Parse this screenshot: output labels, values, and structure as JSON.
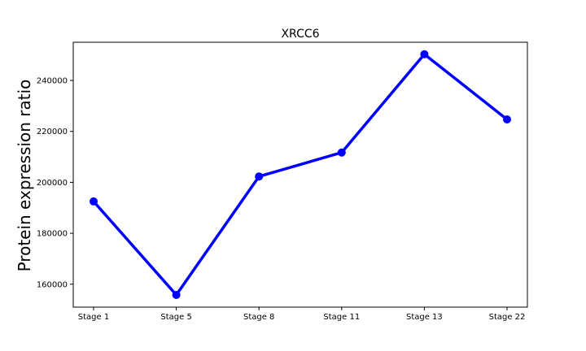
{
  "chart_data": {
    "type": "line",
    "title": "XRCC6",
    "xlabel": "",
    "ylabel": "Protein expression ratio",
    "categories": [
      "Stage 1",
      "Stage 5",
      "Stage 8",
      "Stage 11",
      "Stage 13",
      "Stage 22"
    ],
    "series": [
      {
        "values": [
          192500,
          155800,
          202300,
          211700,
          250300,
          224700
        ]
      }
    ],
    "ylim": [
      151000,
      255000
    ],
    "yticks": [
      {
        "value": 160000,
        "label": "160000"
      },
      {
        "value": 180000,
        "label": "180000"
      },
      {
        "value": 200000,
        "label": "200000"
      },
      {
        "value": 220000,
        "label": "220000"
      },
      {
        "value": 240000,
        "label": "240000"
      }
    ],
    "grid": false,
    "legend": "none",
    "line_color": "#0000ff"
  }
}
